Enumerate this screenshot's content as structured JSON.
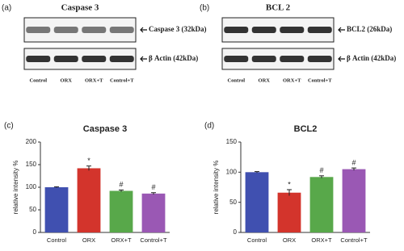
{
  "blots": [
    {
      "label": "(a)",
      "title": "Caspase 3",
      "bands": [
        "Caspase 3 (32kDa)",
        "β Actin (42kDa)"
      ],
      "lanes": [
        "Control",
        "ORX",
        "ORX+T",
        "Control+T"
      ]
    },
    {
      "label": "(b)",
      "title": "BCL 2",
      "bands": [
        "BCL2 (26kDa)",
        "β Actin (42kDa)"
      ],
      "lanes": [
        "Control",
        "ORX",
        "ORX+T",
        "Control+T"
      ]
    }
  ],
  "chart_data": [
    {
      "type": "bar",
      "label": "(c)",
      "title": "Caspase 3",
      "y_label": "relative intensity %",
      "categories": [
        "Control",
        "ORX",
        "ORX+T",
        "Control+T"
      ],
      "values": [
        100,
        142,
        92,
        86
      ],
      "errors": [
        1,
        5,
        2,
        2
      ],
      "annotations": [
        null,
        "*",
        "#",
        "#"
      ],
      "colors": [
        "#4050b0",
        "#d3342c",
        "#58a84a",
        "#9a58b4"
      ],
      "ylim": [
        0,
        200
      ],
      "yticks": [
        0,
        50,
        100,
        150,
        200
      ]
    },
    {
      "type": "bar",
      "label": "(d)",
      "title": "BCL2",
      "y_label": "relative intensity %",
      "categories": [
        "Control",
        "ORX",
        "ORX+T",
        "Control+T"
      ],
      "values": [
        100,
        66,
        92,
        105
      ],
      "errors": [
        1,
        5,
        2,
        2
      ],
      "annotations": [
        null,
        "*",
        "#",
        "#"
      ],
      "colors": [
        "#4050b0",
        "#d3342c",
        "#58a84a",
        "#9a58b4"
      ],
      "ylim": [
        0,
        150
      ],
      "yticks": [
        0,
        50,
        100,
        150
      ]
    }
  ]
}
